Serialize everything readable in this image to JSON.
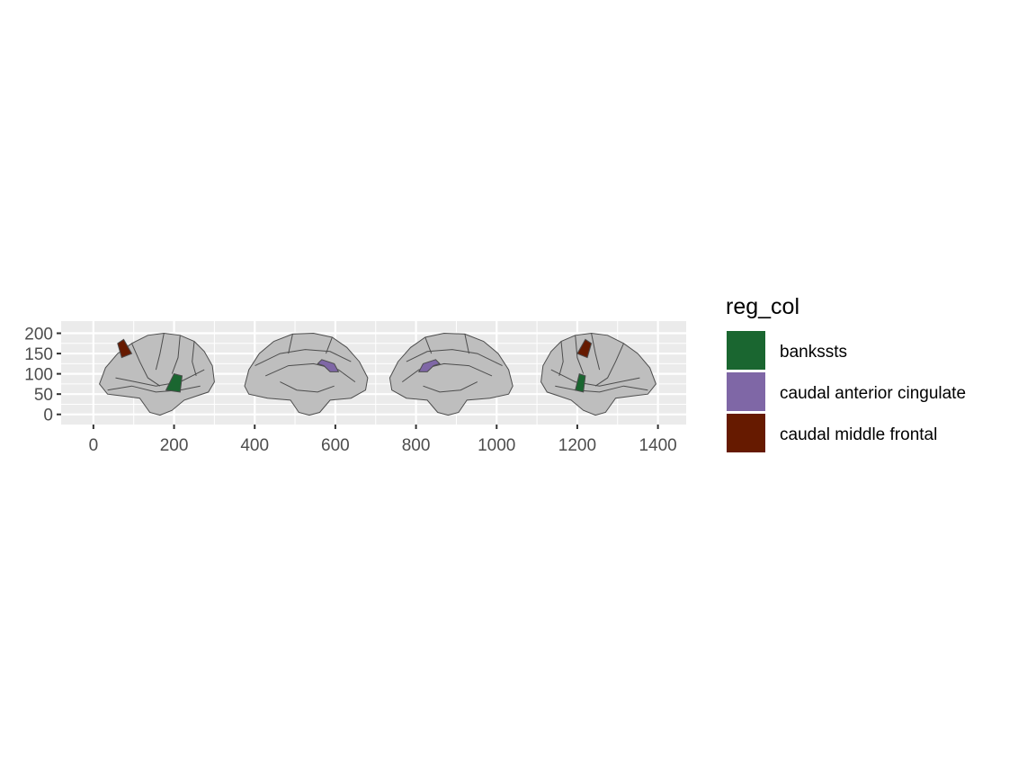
{
  "chart_data": {
    "type": "other",
    "description_kind": "brain atlas map (ggseg)",
    "xlim": [
      -80,
      1470
    ],
    "ylim": [
      -25,
      230
    ],
    "x_ticks": [
      0,
      200,
      400,
      600,
      800,
      1000,
      1200,
      1400
    ],
    "y_ticks": [
      0,
      50,
      100,
      150,
      200
    ],
    "x_tick_labels": [
      "0",
      "200",
      "400",
      "600",
      "800",
      "1000",
      "1200",
      "1400"
    ],
    "y_tick_labels": [
      "0",
      "50",
      "100",
      "150",
      "200"
    ],
    "grid": true,
    "panel_background": "#ebebeb",
    "default_region_fill": "#bebebe",
    "region_outline": "#4d4d4d",
    "views": [
      {
        "name": "left lateral",
        "center_x": 155,
        "width": 290
      },
      {
        "name": "left medial",
        "center_x": 525,
        "width": 300
      },
      {
        "name": "right medial",
        "center_x": 890,
        "width": 300
      },
      {
        "name": "right lateral",
        "center_x": 1255,
        "width": 290
      }
    ],
    "legend": {
      "title": "reg_col",
      "position": "right",
      "entries": [
        {
          "label": "bankssts",
          "color": "#1a6630"
        },
        {
          "label": "caudal anterior cingulate",
          "color": "#7f67a6"
        },
        {
          "label": "caudal middle frontal",
          "color": "#661a00"
        }
      ]
    }
  }
}
